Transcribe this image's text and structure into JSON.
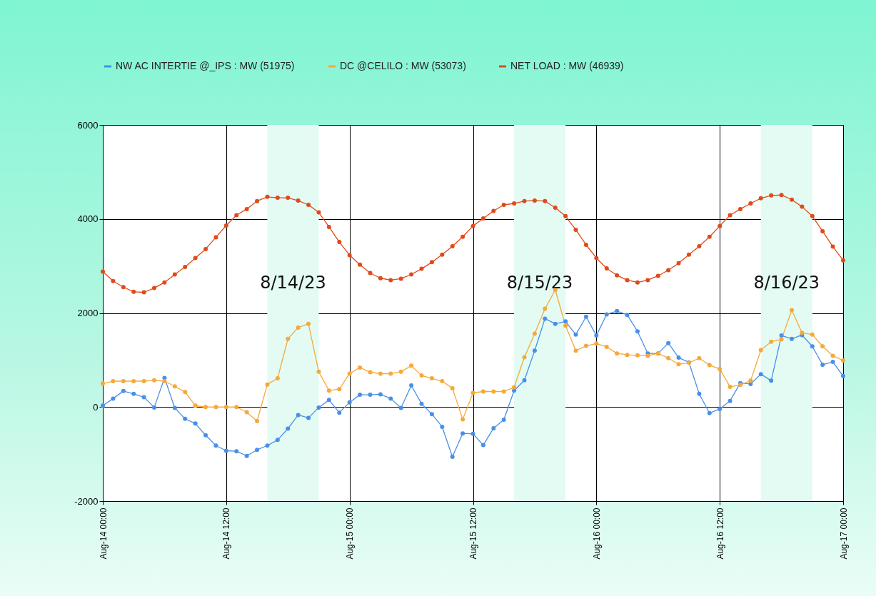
{
  "chart_data": {
    "type": "line",
    "x": [
      "--08-14T00:00",
      "--08-14T01:00",
      "--08-14T02:00",
      "--08-14T03:00",
      "--08-14T04:00",
      "--08-14T05:00",
      "--08-14T06:00",
      "--08-14T07:00",
      "--08-14T08:00",
      "--08-14T09:00",
      "--08-14T10:00",
      "--08-14T11:00",
      "--08-14T12:00",
      "--08-14T13:00",
      "--08-14T14:00",
      "--08-14T15:00",
      "--08-14T16:00",
      "--08-14T17:00",
      "--08-14T18:00",
      "--08-14T19:00",
      "--08-14T20:00",
      "--08-14T21:00",
      "--08-14T22:00",
      "--08-14T23:00",
      "--08-15T00:00",
      "--08-15T01:00",
      "--08-15T02:00",
      "--08-15T03:00",
      "--08-15T04:00",
      "--08-15T05:00",
      "--08-15T06:00",
      "--08-15T07:00",
      "--08-15T08:00",
      "--08-15T09:00",
      "--08-15T10:00",
      "--08-15T11:00",
      "--08-15T12:00",
      "--08-15T13:00",
      "--08-15T14:00",
      "--08-15T15:00",
      "--08-15T16:00",
      "--08-15T17:00",
      "--08-15T18:00",
      "--08-15T19:00",
      "--08-15T20:00",
      "--08-15T21:00",
      "--08-15T22:00",
      "--08-15T23:00",
      "--08-16T00:00",
      "--08-16T01:00",
      "--08-16T02:00",
      "--08-16T03:00",
      "--08-16T04:00",
      "--08-16T05:00",
      "--08-16T06:00",
      "--08-16T07:00",
      "--08-16T08:00",
      "--08-16T09:00",
      "--08-16T10:00",
      "--08-16T11:00",
      "--08-16T12:00",
      "--08-16T13:00",
      "--08-16T14:00",
      "--08-16T15:00",
      "--08-16T16:00",
      "--08-16T17:00",
      "--08-16T18:00",
      "--08-16T19:00",
      "--08-16T20:00",
      "--08-16T21:00",
      "--08-16T22:00",
      "--08-16T23:00",
      "--08-17T00:00"
    ],
    "series": [
      {
        "name": "NW AC INTERTIE @_IPS : MW (51975)",
        "color": "#4a8fe7",
        "values": [
          30,
          180,
          340,
          280,
          210,
          -10,
          620,
          -20,
          -250,
          -350,
          -600,
          -820,
          -930,
          -940,
          -1040,
          -910,
          -820,
          -700,
          -460,
          -170,
          -230,
          -10,
          150,
          -120,
          100,
          260,
          260,
          270,
          180,
          -20,
          460,
          70,
          -150,
          -420,
          -1060,
          -560,
          -570,
          -810,
          -450,
          -270,
          350,
          570,
          1200,
          1880,
          1770,
          1820,
          1540,
          1920,
          1520,
          1970,
          2040,
          1960,
          1610,
          1140,
          1140,
          1360,
          1050,
          950,
          280,
          -130,
          -40,
          130,
          510,
          490,
          700,
          560,
          1520,
          1450,
          1530,
          1290,
          900,
          960,
          660
        ]
      },
      {
        "name": "DC @CELILO : MW (53073)",
        "color": "#f5a93a",
        "values": [
          500,
          550,
          550,
          550,
          550,
          570,
          550,
          440,
          320,
          30,
          0,
          0,
          0,
          0,
          -110,
          -300,
          480,
          610,
          1450,
          1690,
          1770,
          750,
          350,
          380,
          710,
          840,
          740,
          710,
          710,
          750,
          880,
          670,
          610,
          550,
          400,
          -260,
          300,
          330,
          330,
          330,
          420,
          1060,
          1560,
          2090,
          2490,
          1730,
          1200,
          1300,
          1350,
          1280,
          1140,
          1110,
          1100,
          1090,
          1140,
          1040,
          910,
          940,
          1040,
          890,
          810,
          430,
          470,
          560,
          1210,
          1390,
          1440,
          2060,
          1580,
          1540,
          1290,
          1090,
          990
        ]
      },
      {
        "name": "NET LOAD : MW (46939)",
        "color": "#e04a1a",
        "values": [
          2880,
          2680,
          2550,
          2450,
          2440,
          2530,
          2650,
          2820,
          2980,
          3170,
          3360,
          3610,
          3860,
          4080,
          4210,
          4380,
          4470,
          4450,
          4450,
          4390,
          4300,
          4140,
          3830,
          3510,
          3230,
          3030,
          2850,
          2740,
          2700,
          2730,
          2820,
          2940,
          3080,
          3240,
          3420,
          3620,
          3850,
          4010,
          4170,
          4300,
          4330,
          4380,
          4390,
          4380,
          4240,
          4060,
          3770,
          3450,
          3170,
          2950,
          2800,
          2700,
          2650,
          2700,
          2790,
          2910,
          3060,
          3240,
          3420,
          3620,
          3850,
          4080,
          4210,
          4330,
          4440,
          4500,
          4510,
          4410,
          4260,
          4060,
          3740,
          3410,
          3120
        ]
      }
    ],
    "xlim": [
      "--08-14T00:00",
      "--08-17T00:00"
    ],
    "xticks": [
      {
        "value": "--08-14T00:00",
        "label": "Aug-14 00:00"
      },
      {
        "value": "--08-14T12:00",
        "label": "Aug-14 12:00"
      },
      {
        "value": "--08-15T00:00",
        "label": "Aug-15 00:00"
      },
      {
        "value": "--08-15T12:00",
        "label": "Aug-15 12:00"
      },
      {
        "value": "--08-16T00:00",
        "label": "Aug-16 00:00"
      },
      {
        "value": "--08-16T12:00",
        "label": "Aug-16 12:00"
      },
      {
        "value": "--08-17T00:00",
        "label": "Aug-17 00:00"
      }
    ],
    "ylim": [
      -2000,
      6000
    ],
    "yticks": [
      -2000,
      0,
      2000,
      4000,
      6000
    ],
    "bands": [
      {
        "axis": "x",
        "from": "--08-14T16:00",
        "to": "--08-14T21:00",
        "label": "8/14/23",
        "color": "#e3fbf3"
      },
      {
        "axis": "x",
        "from": "--08-15T16:00",
        "to": "--08-15T21:00",
        "label": "8/15/23",
        "color": "#e3fbf3"
      },
      {
        "axis": "x",
        "from": "--08-16T16:00",
        "to": "--08-16T21:00",
        "label": "8/16/23",
        "color": "#e3fbf3"
      }
    ],
    "grid": true,
    "legend": "top",
    "marker": "circle",
    "line_style": "solid"
  }
}
